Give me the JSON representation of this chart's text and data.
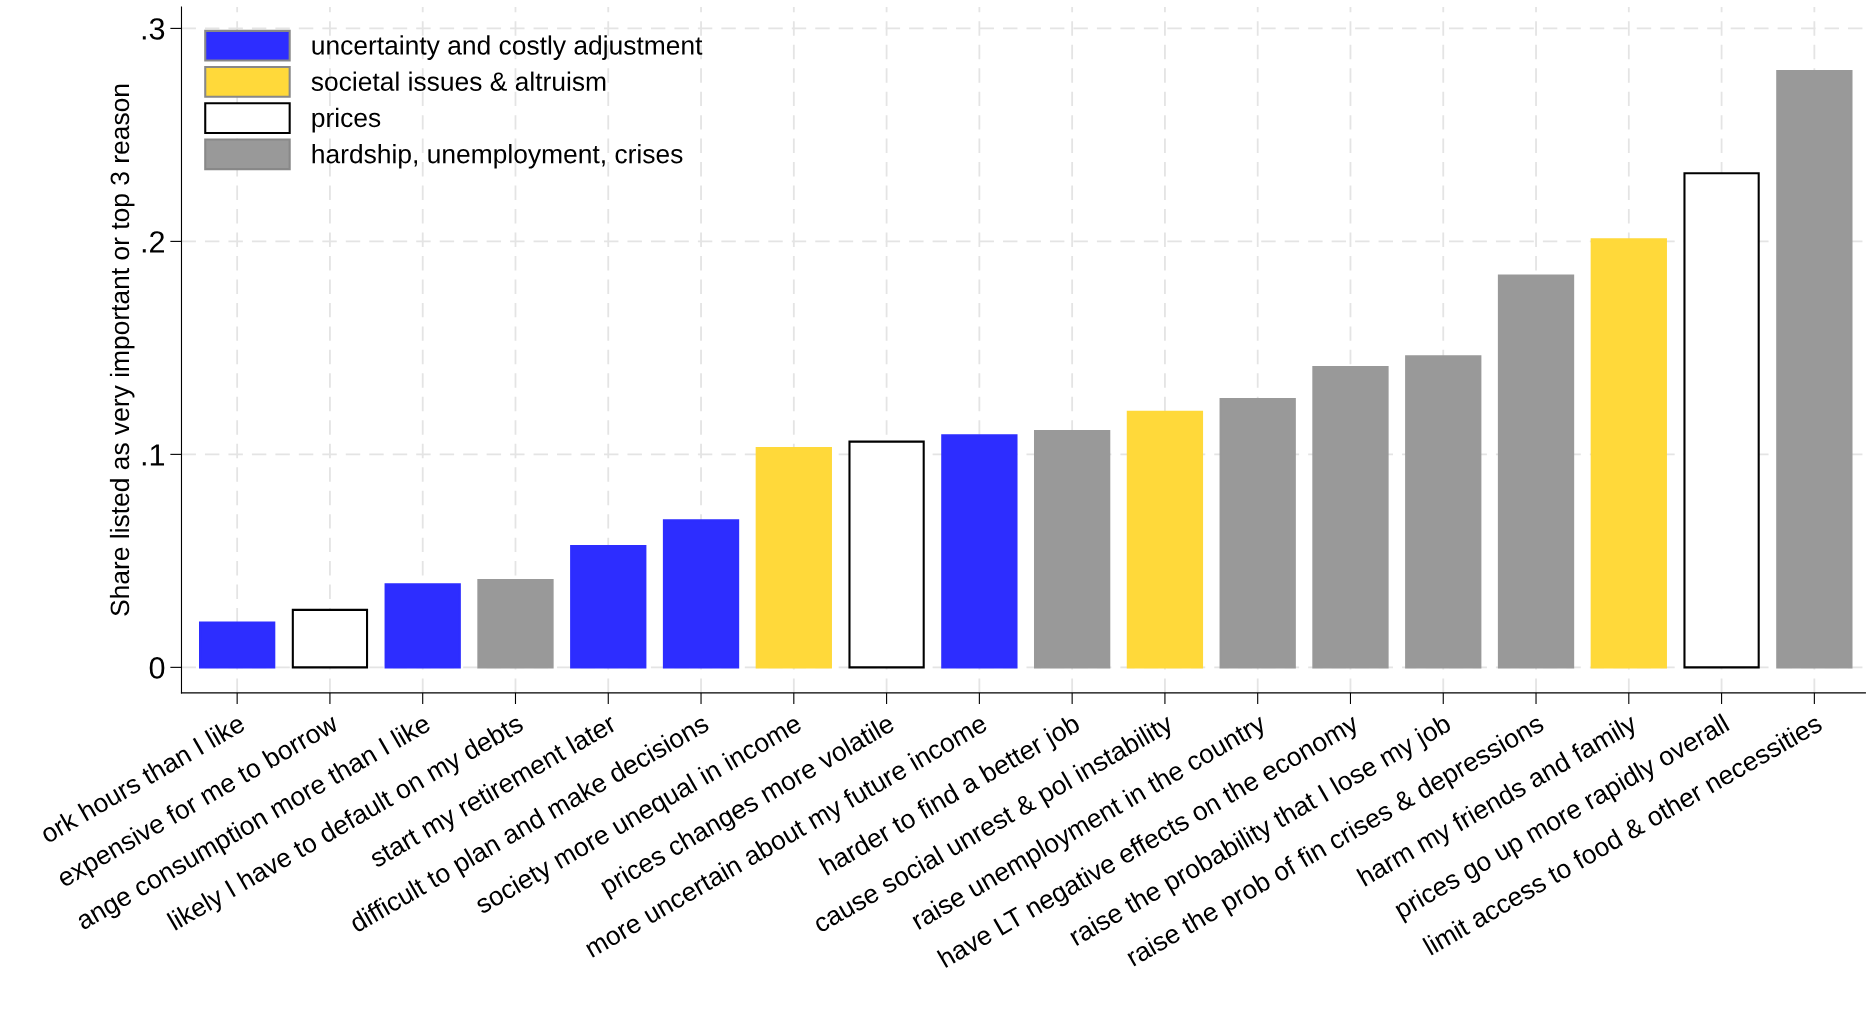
{
  "chart_data": {
    "type": "bar",
    "ylabel": "Share listed as very important or top 3 reason",
    "categories": [
      "ork hours than I like",
      "expensive for me to borrow",
      "ange consumption more than I like",
      "likely I have to default on my debts",
      "start my retirement later",
      "difficult to plan and make decisions",
      "society more unequal in income",
      "prices changes more volatile",
      "more uncertain about my future income",
      "harder to find a better job",
      "cause social unrest & pol instability",
      "raise unemployment in the country",
      "have LT negative effects on the economy",
      "raise the probability that I lose my job",
      "raise the prob of fin crises & depressions",
      "harm my friends and family",
      "prices go up more rapidly overall",
      "limit access to food & other necessities"
    ],
    "series": [
      {
        "name": "uncertainty and costly adjustment",
        "color": "#2d2dff",
        "values": [
          0.021,
          null,
          0.039,
          null,
          0.057,
          0.069,
          null,
          null,
          0.109,
          null,
          null,
          null,
          null,
          null,
          null,
          null,
          null,
          null
        ]
      },
      {
        "name": "societal issues & altruism",
        "color": "#ffd93a",
        "values": [
          null,
          null,
          null,
          null,
          null,
          null,
          0.103,
          null,
          null,
          null,
          0.12,
          null,
          null,
          null,
          null,
          0.201,
          null,
          null
        ]
      },
      {
        "name": "prices",
        "color": "#ffffff",
        "values": [
          null,
          0.027,
          null,
          null,
          null,
          null,
          null,
          0.106,
          null,
          null,
          null,
          null,
          null,
          null,
          null,
          null,
          0.232,
          null
        ]
      },
      {
        "name": "hardship, unemployment, crises",
        "color": "#999999",
        "values": [
          null,
          null,
          null,
          0.041,
          null,
          null,
          null,
          null,
          null,
          0.111,
          null,
          0.126,
          0.141,
          0.146,
          0.184,
          null,
          null,
          0.28
        ]
      }
    ],
    "ylim": [
      -0.012,
      0.31
    ],
    "yticks": [
      {
        "value": 0,
        "label": "0"
      },
      {
        "value": 0.1,
        "label": ".1"
      },
      {
        "value": 0.2,
        "label": ".2"
      },
      {
        "value": 0.3,
        "label": ".3"
      }
    ],
    "grid": true,
    "legend": "top left"
  }
}
